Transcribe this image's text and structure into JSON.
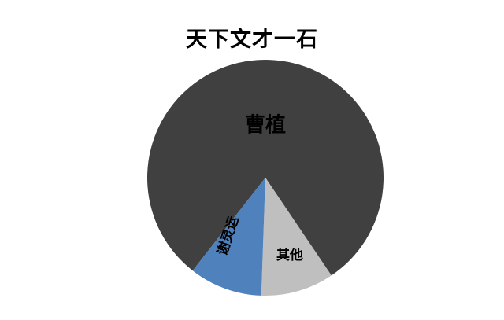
{
  "chart_data": {
    "type": "pie",
    "title": "天下文才一石",
    "slices": [
      {
        "label": "曹植",
        "value": 80,
        "color": "#404040"
      },
      {
        "label": "其他",
        "value": 10,
        "color": "#bfbfbf"
      },
      {
        "label": "谢灵运",
        "value": 10,
        "color": "#4f81bd"
      }
    ],
    "legend": "none"
  }
}
